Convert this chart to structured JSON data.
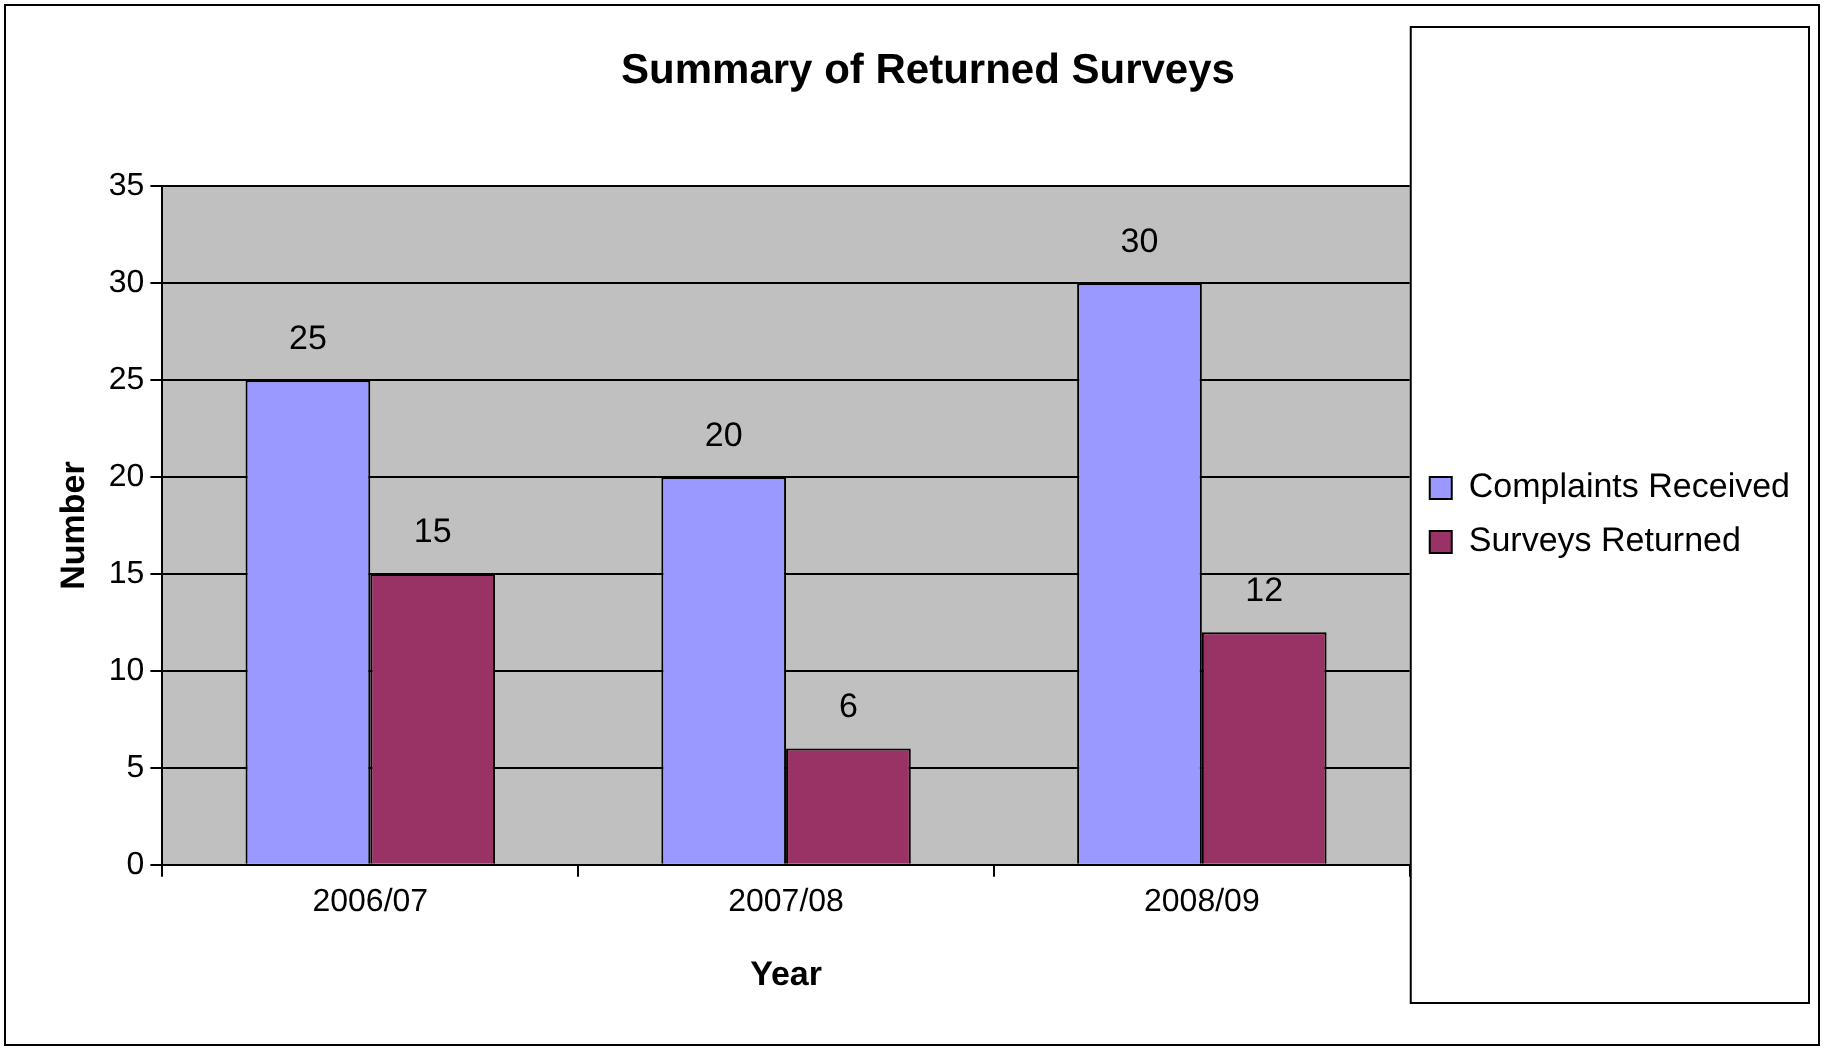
{
  "chart_data": {
    "type": "bar",
    "title": "Summary of Returned Surveys",
    "xlabel": "Year",
    "ylabel": "Number",
    "categories": [
      "2006/07",
      "2007/08",
      "2008/09"
    ],
    "series": [
      {
        "name": "Complaints Received",
        "color": "#9999ff",
        "values": [
          25,
          20,
          30
        ]
      },
      {
        "name": "Surveys Returned",
        "color": "#993366",
        "values": [
          15,
          6,
          12
        ]
      }
    ],
    "ylim": [
      0,
      35
    ],
    "yticks": [
      0,
      5,
      10,
      15,
      20,
      25,
      30,
      35
    ],
    "grid": "y",
    "legend": "right",
    "data_labels": true
  }
}
